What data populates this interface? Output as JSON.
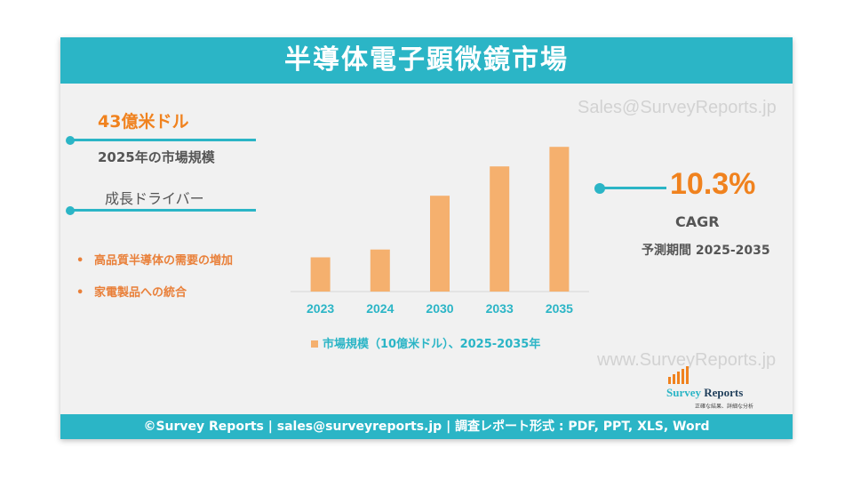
{
  "header": {
    "title": "半導体電子顕微鏡市場"
  },
  "watermarks": {
    "top": "Sales@SurveyReports.jp",
    "bottom": "www.SurveyReports.jp"
  },
  "market": {
    "value": "43億米ドル",
    "caption": "2025年の市場規模"
  },
  "drivers": {
    "heading": "成長ドライバー",
    "items": [
      {
        "bullet": "•",
        "text": "高品質半導体の需要の増加"
      },
      {
        "bullet": "•",
        "text": "家電製品への統合"
      }
    ]
  },
  "cagr": {
    "value": "10.3%",
    "label": "CAGR",
    "period": "予測期間 2025-2035"
  },
  "logo": {
    "name_first": "Survey",
    "name_second": "Reports",
    "tagline": "正確な結果、詳細な分析"
  },
  "footer": {
    "text": "©Survey Reports | sales@surveyreports.jp |  調査レポート形式 : PDF, PPT, XLS, Word"
  },
  "colors": {
    "accent": "#2bb5c6",
    "bar": "#f5b06e",
    "highlight": "#f0821e"
  },
  "chart_data": {
    "type": "bar",
    "categories": [
      "2023",
      "2024",
      "2030",
      "2033",
      "2035"
    ],
    "values": [
      3.5,
      4.3,
      9.8,
      12.8,
      14.8
    ],
    "title": "",
    "xlabel": "",
    "ylabel": "",
    "ylim": [
      0,
      16
    ],
    "grid": false,
    "legend": {
      "label": "市場規模（10億米ドル）、2025-2035年",
      "position": "bottom"
    },
    "series": [
      {
        "name": "市場規模（10億米ドル）、2025-2035年",
        "values": [
          3.5,
          4.3,
          9.8,
          12.8,
          14.8
        ]
      }
    ]
  }
}
